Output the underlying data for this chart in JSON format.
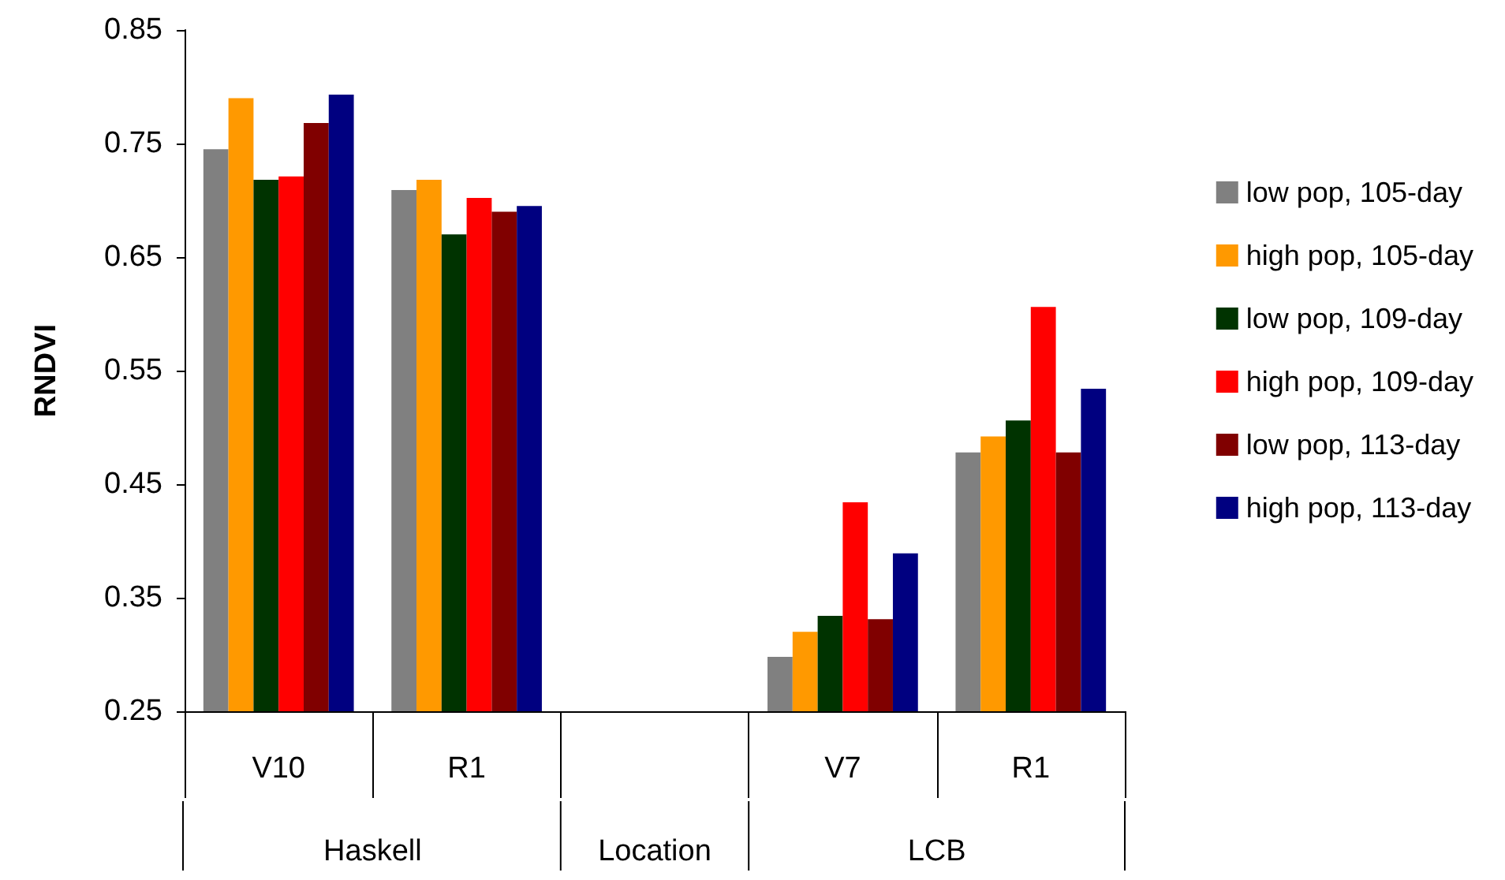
{
  "chart_data": {
    "type": "bar",
    "ylabel": "RNDVI",
    "xlabel": "Location",
    "annotations": [
      "Haskell",
      "LCB"
    ],
    "categories": [
      "V10",
      "R1",
      null,
      "V7",
      "R1"
    ],
    "ylim": [
      0.25,
      0.85
    ],
    "yticks": [
      0.25,
      0.35,
      0.45,
      0.55,
      0.65,
      0.75,
      0.85
    ],
    "grid": false,
    "legend": "right",
    "series": [
      {
        "name": "low pop, 105-day",
        "color": "#808080",
        "values": [
          0.745,
          0.709,
          null,
          0.298,
          0.478
        ]
      },
      {
        "name": "high pop, 105-day",
        "color": "#ff9900",
        "values": [
          0.79,
          0.718,
          null,
          0.32,
          0.492
        ]
      },
      {
        "name": "low pop, 109-day",
        "color": "#003300",
        "values": [
          0.718,
          0.67,
          null,
          0.334,
          0.506
        ]
      },
      {
        "name": "high pop, 109-day",
        "color": "#ff0000",
        "values": [
          0.721,
          0.702,
          null,
          0.434,
          0.606
        ]
      },
      {
        "name": "low pop, 113-day",
        "color": "#800000",
        "values": [
          0.768,
          0.69,
          null,
          0.331,
          0.478
        ]
      },
      {
        "name": "high pop, 113-day",
        "color": "#000080",
        "values": [
          0.793,
          0.695,
          null,
          0.389,
          0.534
        ]
      }
    ]
  }
}
